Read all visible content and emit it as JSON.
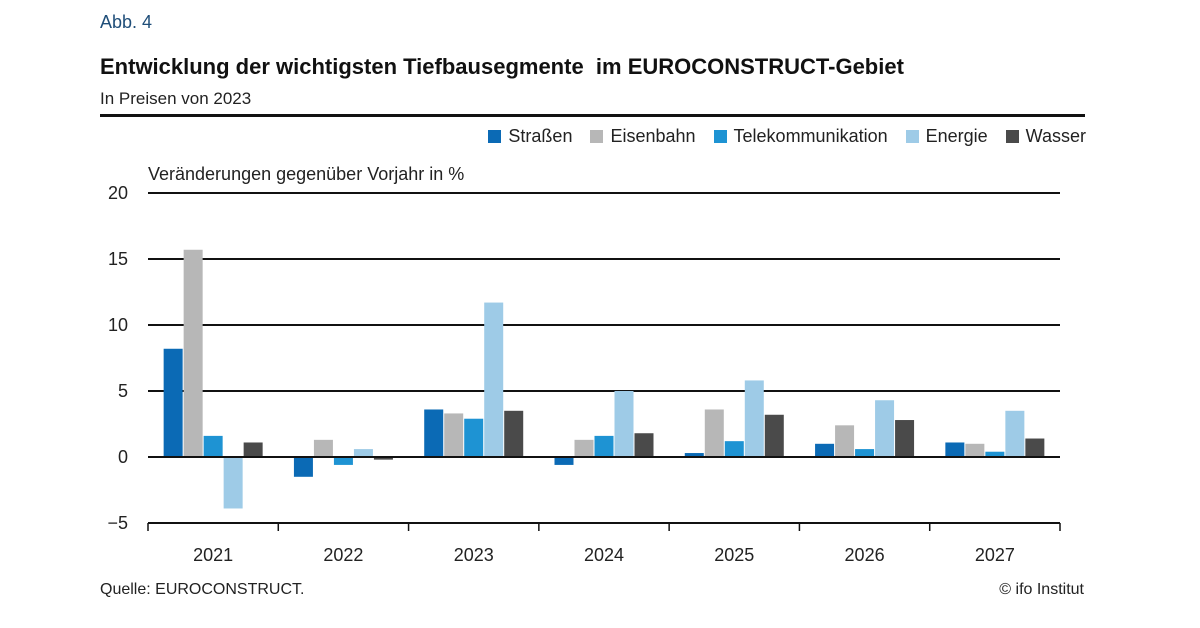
{
  "header": {
    "figure_label": "Abb. 4",
    "title": "Entwicklung der wichtigsten Tiefbausegmente  im EUROCONSTRUCT-Gebiet",
    "subtitle": "In Preisen von 2023"
  },
  "footer": {
    "source": "Quelle: EUROCONSTRUCT.",
    "copyright": "© ifo Institut"
  },
  "chart_data": {
    "type": "bar",
    "ylabel": "Veränderungen gegenüber Vorjahr in %",
    "ylim": [
      -5,
      20
    ],
    "yticks": [
      -5,
      0,
      5,
      10,
      15,
      20
    ],
    "ytick_labels": [
      "−5",
      "0",
      "5",
      "10",
      "15",
      "20"
    ],
    "grid": true,
    "legend_position": "top-right",
    "categories": [
      "2021",
      "2022",
      "2023",
      "2024",
      "2025",
      "2026",
      "2027"
    ],
    "series": [
      {
        "name": "Straßen",
        "color": "#0b6ab5",
        "values": [
          8.2,
          -1.5,
          3.6,
          -0.6,
          0.3,
          1.0,
          1.1
        ]
      },
      {
        "name": "Eisenbahn",
        "color": "#b7b7b7",
        "values": [
          15.7,
          1.3,
          3.3,
          1.3,
          3.6,
          2.4,
          1.0
        ]
      },
      {
        "name": "Telekommunikation",
        "color": "#1e93d3",
        "values": [
          1.6,
          -0.6,
          2.9,
          1.6,
          1.2,
          0.6,
          0.4
        ]
      },
      {
        "name": "Energie",
        "color": "#9ecbe7",
        "values": [
          -3.9,
          0.6,
          11.7,
          5.0,
          5.8,
          4.3,
          3.5
        ]
      },
      {
        "name": "Wasser",
        "color": "#4a4a4a",
        "values": [
          1.1,
          -0.2,
          3.5,
          1.8,
          3.2,
          2.8,
          1.4
        ]
      }
    ]
  }
}
